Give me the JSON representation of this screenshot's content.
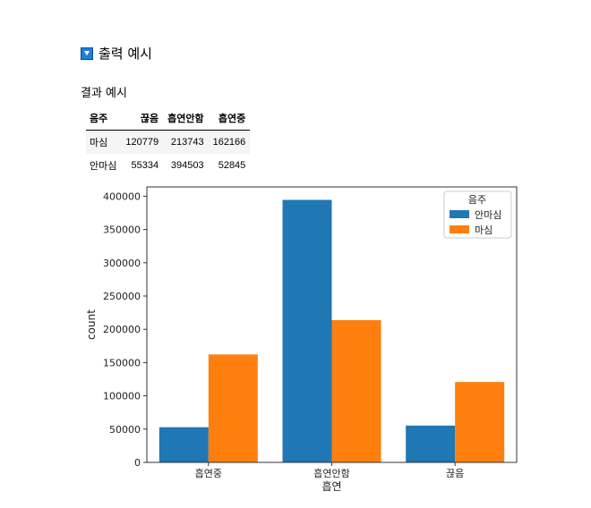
{
  "heading": {
    "icon": "triangle-down-icon",
    "text": "출력 예시"
  },
  "subtitle": "결과  예시",
  "table": {
    "index_label": "음주",
    "columns": [
      "끊음",
      "흡연안함",
      "흡연중"
    ],
    "rows": [
      {
        "label": "마심",
        "values": [
          "120779",
          "213743",
          "162166"
        ]
      },
      {
        "label": "안마심",
        "values": [
          "55334",
          "394503",
          "52845"
        ]
      }
    ]
  },
  "chart_data": {
    "type": "bar",
    "categories": [
      "흡연중",
      "흡연안함",
      "끊음"
    ],
    "series": [
      {
        "name": "안마심",
        "color": "#1f77b4",
        "values": [
          52845,
          394503,
          55334
        ]
      },
      {
        "name": "마심",
        "color": "#ff7f0e",
        "values": [
          162166,
          213743,
          120779
        ]
      }
    ],
    "xlabel": "흡연",
    "ylabel": "count",
    "ylim": [
      0,
      414000
    ],
    "yticks": [
      0,
      50000,
      100000,
      150000,
      200000,
      250000,
      300000,
      350000,
      400000
    ],
    "legend": {
      "title": "음주",
      "placement": "top-right"
    },
    "grid": false
  }
}
